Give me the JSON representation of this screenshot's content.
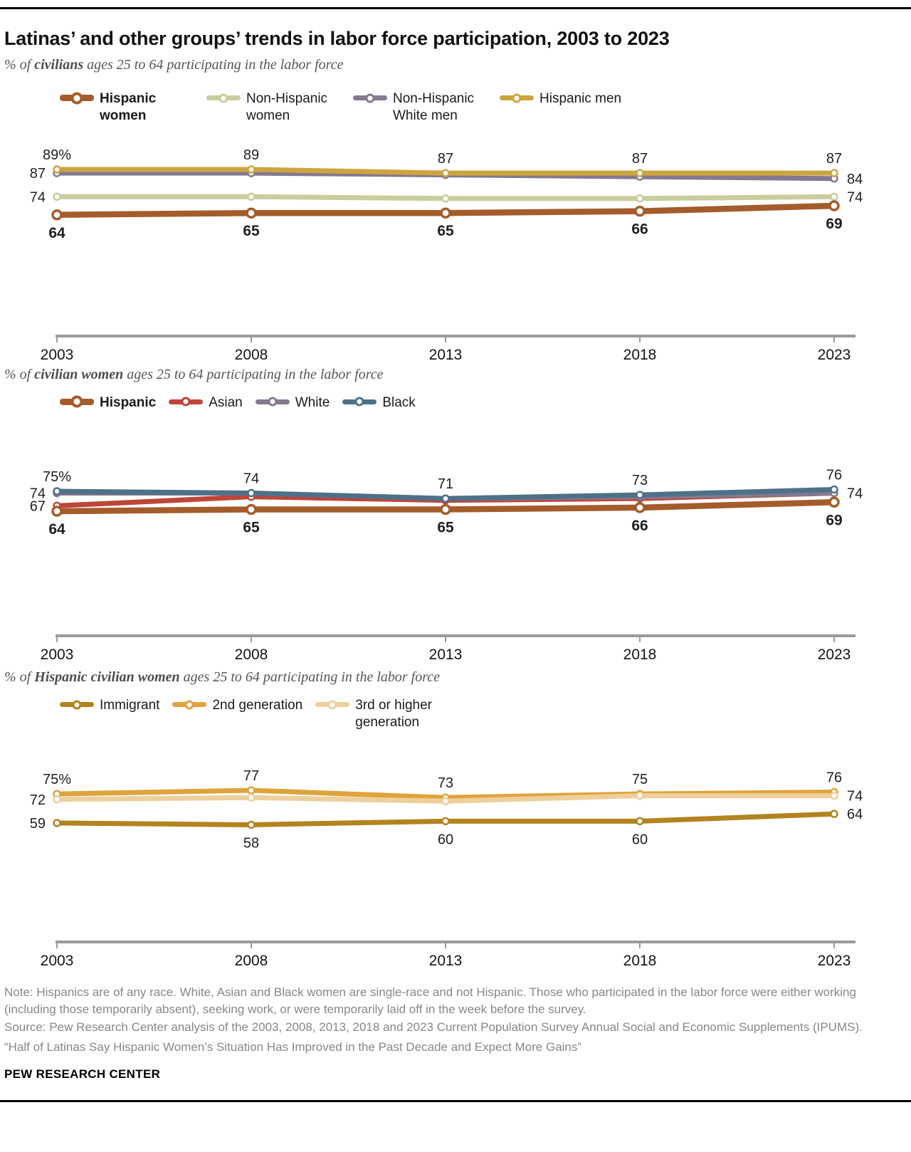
{
  "title": "Latinas’ and other groups’ trends in labor force participation, 2003 to 2023",
  "chart_data": [
    {
      "type": "line",
      "subtitle_parts": {
        "pre": "% of ",
        "bold": "civilians",
        "post": " ages 25 to 64 participating in the labor force"
      },
      "x": [
        "2003",
        "2008",
        "2013",
        "2018",
        "2023"
      ],
      "legend_position": "top",
      "series": [
        {
          "name": "Hispanic women",
          "color": "#a55c2b",
          "emphasis": true,
          "values": [
            64,
            65,
            65,
            66,
            69
          ],
          "point_labels": [
            {
              "i": 0,
              "t": "64",
              "pos": "below",
              "bold": true
            },
            {
              "i": 1,
              "t": "65",
              "pos": "below",
              "bold": true
            },
            {
              "i": 2,
              "t": "65",
              "pos": "below",
              "bold": true
            },
            {
              "i": 3,
              "t": "66",
              "pos": "below",
              "bold": true
            },
            {
              "i": 4,
              "t": "69",
              "pos": "below",
              "bold": true
            }
          ]
        },
        {
          "name": "Non-Hispanic women",
          "color": "#c9cd9c",
          "values": [
            74,
            74,
            73,
            73,
            74
          ],
          "point_labels": [
            {
              "i": 0,
              "t": "74",
              "pos": "left"
            },
            {
              "i": 4,
              "t": "74",
              "pos": "right"
            }
          ]
        },
        {
          "name": "Non-Hispanic White men",
          "color": "#84798f",
          "values": [
            87,
            87,
            86,
            85,
            84
          ],
          "point_labels": [
            {
              "i": 0,
              "t": "87",
              "pos": "left"
            },
            {
              "i": 4,
              "t": "84",
              "pos": "right"
            }
          ]
        },
        {
          "name": "Hispanic men",
          "color": "#cda53f",
          "values": [
            89,
            89,
            87,
            87,
            87
          ],
          "point_labels": [
            {
              "i": 0,
              "t": "89%",
              "pos": "above"
            },
            {
              "i": 1,
              "t": "89",
              "pos": "above"
            },
            {
              "i": 2,
              "t": "87",
              "pos": "above"
            },
            {
              "i": 3,
              "t": "87",
              "pos": "above"
            },
            {
              "i": 4,
              "t": "87",
              "pos": "above"
            }
          ]
        }
      ]
    },
    {
      "type": "line",
      "subtitle_parts": {
        "pre": "% of ",
        "bold": "civilian women",
        "post": " ages 25 to 64 participating in the labor force"
      },
      "x": [
        "2003",
        "2008",
        "2013",
        "2018",
        "2023"
      ],
      "legend_position": "top",
      "series": [
        {
          "name": "Hispanic",
          "color": "#a55c2b",
          "emphasis": true,
          "values": [
            64,
            65,
            65,
            66,
            69
          ],
          "point_labels": [
            {
              "i": 0,
              "t": "64",
              "pos": "below",
              "bold": true
            },
            {
              "i": 1,
              "t": "65",
              "pos": "below",
              "bold": true
            },
            {
              "i": 2,
              "t": "65",
              "pos": "below",
              "bold": true
            },
            {
              "i": 3,
              "t": "66",
              "pos": "below",
              "bold": true
            },
            {
              "i": 4,
              "t": "69",
              "pos": "below",
              "bold": true
            }
          ]
        },
        {
          "name": "Asian",
          "color": "#bf4538",
          "values": [
            67,
            72,
            70,
            71,
            74
          ],
          "point_labels": [
            {
              "i": 0,
              "t": "67",
              "pos": "left"
            }
          ]
        },
        {
          "name": "White",
          "color": "#84798f",
          "values": [
            74,
            74,
            71,
            72,
            74
          ],
          "point_labels": [
            {
              "i": 0,
              "t": "74",
              "pos": "left"
            },
            {
              "i": 4,
              "t": "74",
              "pos": "right"
            }
          ]
        },
        {
          "name": "Black",
          "color": "#4d7189",
          "values": [
            75,
            74,
            71,
            73,
            76
          ],
          "point_labels": [
            {
              "i": 0,
              "t": "75%",
              "pos": "above"
            },
            {
              "i": 1,
              "t": "74",
              "pos": "above"
            },
            {
              "i": 2,
              "t": "71",
              "pos": "above"
            },
            {
              "i": 3,
              "t": "73",
              "pos": "above"
            },
            {
              "i": 4,
              "t": "76",
              "pos": "above"
            }
          ]
        }
      ]
    },
    {
      "type": "line",
      "subtitle_parts": {
        "pre": "% of ",
        "bold": "Hispanic civilian women",
        "post": " ages 25 to 64 participating in the labor force"
      },
      "x": [
        "2003",
        "2008",
        "2013",
        "2018",
        "2023"
      ],
      "legend_position": "top",
      "series": [
        {
          "name": "Immigrant",
          "color": "#b3831f",
          "values": [
            59,
            58,
            60,
            60,
            64
          ],
          "point_labels": [
            {
              "i": 0,
              "t": "59",
              "pos": "left"
            },
            {
              "i": 1,
              "t": "58",
              "pos": "below"
            },
            {
              "i": 2,
              "t": "60",
              "pos": "below"
            },
            {
              "i": 3,
              "t": "60",
              "pos": "below"
            },
            {
              "i": 4,
              "t": "64",
              "pos": "right"
            }
          ]
        },
        {
          "name": "2nd generation",
          "color": "#e0a33c",
          "values": [
            75,
            77,
            73,
            75,
            76
          ],
          "point_labels": [
            {
              "i": 0,
              "t": "75%",
              "pos": "above"
            },
            {
              "i": 1,
              "t": "77",
              "pos": "above"
            },
            {
              "i": 2,
              "t": "73",
              "pos": "above"
            },
            {
              "i": 3,
              "t": "75",
              "pos": "above"
            },
            {
              "i": 4,
              "t": "76",
              "pos": "above"
            }
          ]
        },
        {
          "name": "3rd or higher generation",
          "color": "#eecf9c",
          "values": [
            72,
            73,
            71,
            74,
            74
          ],
          "point_labels": [
            {
              "i": 0,
              "t": "72",
              "pos": "left"
            },
            {
              "i": 4,
              "t": "74",
              "pos": "right"
            }
          ]
        }
      ]
    }
  ],
  "footer": {
    "note": "Note: Hispanics are of any race. White, Asian and Black women are single-race and not Hispanic. Those who participated in the labor force were either working (including those temporarily absent), seeking work, or were temporarily laid off in the week before the survey.",
    "source": "Source: Pew Research Center analysis of the 2003, 2008, 2013, 2018 and 2023 Current Population Survey Annual Social and Economic Supplements (IPUMS).",
    "quote": "“Half of Latinas Say Hispanic Women’s Situation Has Improved in the Past Decade and Expect More Gains”",
    "brand": "PEW RESEARCH CENTER"
  }
}
